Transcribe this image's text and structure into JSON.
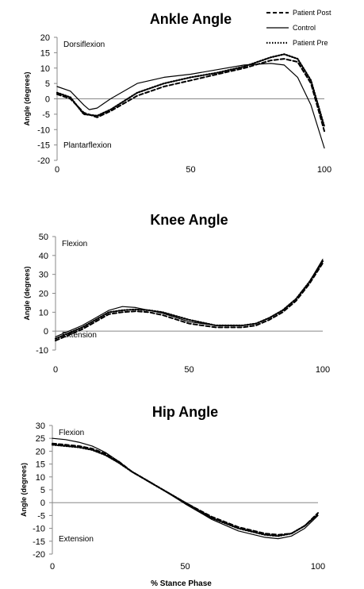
{
  "legend": [
    {
      "name": "Patient Post",
      "dash": "5,3",
      "width": 2
    },
    {
      "name": "Control",
      "dash": "",
      "width": 1.2
    },
    {
      "name": "Patient Pre",
      "dash": "1.5,2",
      "width": 2.2
    }
  ],
  "x_axis_title": "% Stance Phase",
  "chart_data": [
    {
      "type": "line",
      "title": "Ankle Angle",
      "ylabel": "Angle (degrees)",
      "xlabel": "",
      "xlim": [
        0,
        100
      ],
      "ylim": [
        -20,
        20
      ],
      "xticks": [
        0,
        50,
        100
      ],
      "yticks": [
        -20,
        -15,
        -10,
        -5,
        0,
        5,
        10,
        15,
        20
      ],
      "annotations": {
        "top": "Dorsiflexion",
        "bottom": "Plantarflexion"
      },
      "grid": false,
      "series": [
        {
          "name": "Patient Post",
          "x": [
            0,
            5,
            10,
            15,
            20,
            30,
            40,
            50,
            60,
            70,
            80,
            85,
            90,
            95,
            100
          ],
          "y": [
            1.5,
            0,
            -4.5,
            -6,
            -4,
            1,
            4,
            6,
            8,
            10,
            12.5,
            13,
            12,
            5,
            -10.5
          ]
        },
        {
          "name": "Control",
          "x": [
            0,
            5,
            10,
            12,
            15,
            20,
            30,
            40,
            50,
            60,
            70,
            80,
            85,
            90,
            95,
            100
          ],
          "y": [
            4,
            2.5,
            -2,
            -3.5,
            -3,
            0,
            5,
            7,
            8,
            9.5,
            11,
            11.5,
            11,
            7,
            -2,
            -16
          ]
        },
        {
          "name": "Patient Pre",
          "x": [
            0,
            5,
            10,
            15,
            20,
            30,
            40,
            50,
            60,
            70,
            80,
            85,
            90,
            95,
            100
          ],
          "y": [
            2,
            0.5,
            -5,
            -5.5,
            -3.5,
            2,
            5,
            7,
            8.5,
            10.5,
            13.5,
            14.5,
            13,
            6,
            -9
          ]
        }
      ]
    },
    {
      "type": "line",
      "title": "Knee Angle",
      "ylabel": "Angle (degrees)",
      "xlabel": "",
      "xlim": [
        0,
        100
      ],
      "ylim": [
        -10,
        50
      ],
      "xticks": [
        0,
        50,
        100
      ],
      "yticks": [
        -10,
        0,
        10,
        20,
        30,
        40,
        50
      ],
      "annotations": {
        "top": "Flexion",
        "bottom": "Extension"
      },
      "grid": false,
      "series": [
        {
          "name": "Patient Post",
          "x": [
            0,
            5,
            10,
            15,
            20,
            25,
            30,
            35,
            40,
            50,
            60,
            70,
            75,
            80,
            85,
            90,
            95,
            100
          ],
          "y": [
            -5,
            -2,
            1,
            5,
            9,
            10,
            10.5,
            10,
            8.5,
            4,
            2,
            2,
            3,
            6,
            10,
            16,
            25,
            36
          ]
        },
        {
          "name": "Control",
          "x": [
            0,
            5,
            10,
            15,
            20,
            25,
            30,
            35,
            40,
            50,
            60,
            70,
            75,
            80,
            85,
            90,
            95,
            100
          ],
          "y": [
            -3,
            0,
            3,
            7,
            11,
            13,
            12.5,
            11,
            9.5,
            5,
            3,
            3,
            4,
            7,
            11,
            17,
            26,
            38
          ]
        },
        {
          "name": "Patient Pre",
          "x": [
            0,
            5,
            10,
            15,
            20,
            25,
            30,
            35,
            40,
            50,
            60,
            70,
            75,
            80,
            85,
            90,
            95,
            100
          ],
          "y": [
            -4,
            -1,
            2,
            6,
            10,
            11,
            11.5,
            11,
            10,
            6,
            3,
            3,
            4,
            7,
            11,
            17,
            26,
            37
          ]
        }
      ]
    },
    {
      "type": "line",
      "title": "Hip Angle",
      "ylabel": "Angle (degrees)",
      "xlabel": "% Stance Phase",
      "xlim": [
        0,
        100
      ],
      "ylim": [
        -20,
        30
      ],
      "xticks": [
        0,
        50,
        100
      ],
      "yticks": [
        -20,
        -15,
        -10,
        -5,
        0,
        5,
        10,
        15,
        20,
        25,
        30
      ],
      "annotations": {
        "top": "Flexion",
        "bottom": "Extension"
      },
      "grid": false,
      "series": [
        {
          "name": "Patient Post",
          "x": [
            0,
            5,
            10,
            15,
            20,
            25,
            30,
            40,
            50,
            60,
            70,
            80,
            85,
            90,
            95,
            100
          ],
          "y": [
            23,
            22.5,
            22,
            21,
            19,
            16,
            12,
            6,
            0,
            -5.5,
            -9.5,
            -12,
            -12.5,
            -12,
            -9,
            -4
          ]
        },
        {
          "name": "Control",
          "x": [
            0,
            5,
            10,
            15,
            20,
            25,
            30,
            40,
            50,
            60,
            70,
            80,
            85,
            90,
            95,
            100
          ],
          "y": [
            25,
            24.5,
            23.5,
            22,
            19.5,
            16,
            12,
            6,
            -0.5,
            -6.5,
            -11,
            -13.5,
            -14,
            -13,
            -10,
            -5
          ]
        },
        {
          "name": "Patient Pre",
          "x": [
            0,
            5,
            10,
            15,
            20,
            25,
            30,
            40,
            50,
            60,
            70,
            80,
            85,
            90,
            95,
            100
          ],
          "y": [
            22.5,
            22,
            21.5,
            20.5,
            18.5,
            15.5,
            12,
            6,
            0,
            -6,
            -10,
            -12.5,
            -13,
            -12,
            -9,
            -4.5
          ]
        }
      ]
    }
  ]
}
